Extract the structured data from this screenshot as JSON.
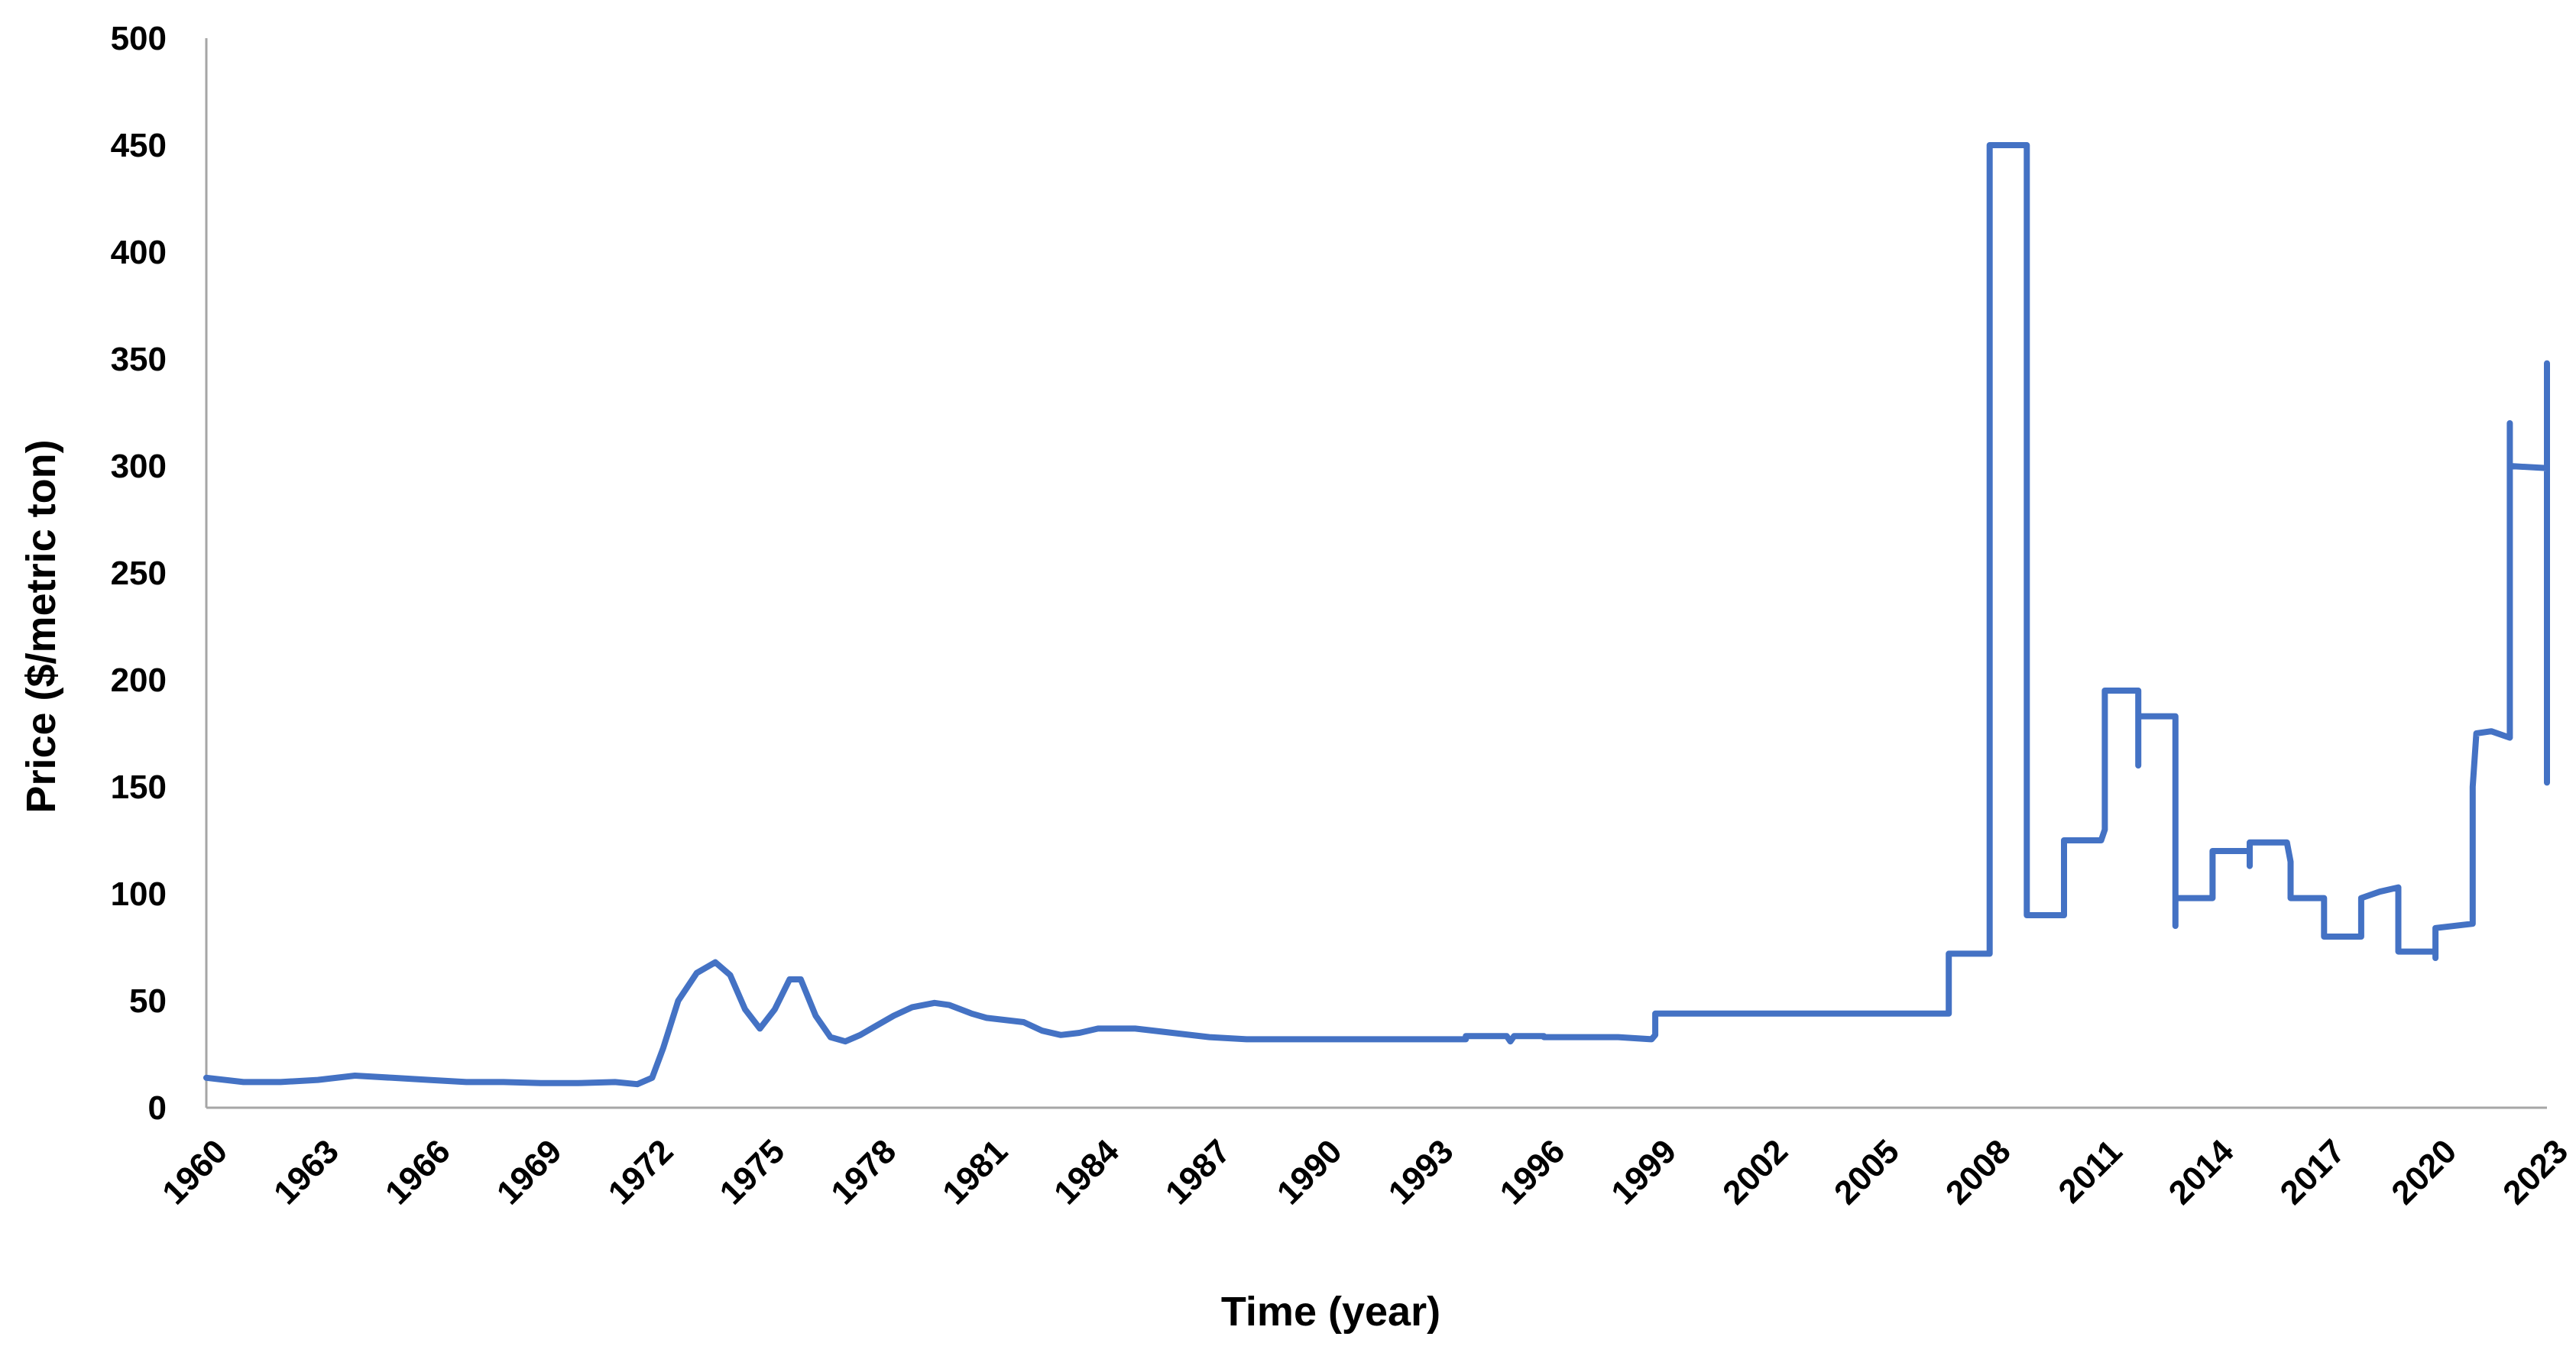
{
  "chart_data": {
    "type": "line",
    "title": "",
    "xlabel": "Time (year)",
    "ylabel": "Price ($/metric ton)",
    "xlim": [
      1960,
      2023
    ],
    "ylim": [
      0,
      500
    ],
    "y_ticks": [
      0,
      50,
      100,
      150,
      200,
      250,
      300,
      350,
      400,
      450,
      500
    ],
    "x_tick_labels": [
      "1960",
      "1963",
      "1966",
      "1969",
      "1972",
      "1975",
      "1978",
      "1981",
      "1984",
      "1987",
      "1990",
      "1993",
      "1996",
      "1999",
      "2002",
      "2005",
      "2008",
      "2011",
      "2014",
      "2017",
      "2020",
      "2023"
    ],
    "grid": false,
    "legend": "none",
    "series": [
      {
        "color": "#4472c4",
        "points": [
          [
            1960.0,
            14
          ],
          [
            1961.0,
            12
          ],
          [
            1962.0,
            12
          ],
          [
            1963.0,
            13
          ],
          [
            1964.0,
            15
          ],
          [
            1965.0,
            14
          ],
          [
            1966.0,
            13
          ],
          [
            1967.0,
            12
          ],
          [
            1968.0,
            12
          ],
          [
            1969.0,
            11.5
          ],
          [
            1970.0,
            11.5
          ],
          [
            1971.0,
            12
          ],
          [
            1971.6,
            11
          ],
          [
            1972.0,
            14
          ],
          [
            1972.3,
            28
          ],
          [
            1972.7,
            50
          ],
          [
            1973.2,
            63
          ],
          [
            1973.7,
            68
          ],
          [
            1974.1,
            62
          ],
          [
            1974.5,
            46
          ],
          [
            1974.9,
            37
          ],
          [
            1975.3,
            46
          ],
          [
            1975.7,
            60
          ],
          [
            1976.0,
            60
          ],
          [
            1976.4,
            43
          ],
          [
            1976.8,
            33
          ],
          [
            1977.2,
            31
          ],
          [
            1977.6,
            34
          ],
          [
            1978.0,
            38
          ],
          [
            1978.5,
            43
          ],
          [
            1979.0,
            47
          ],
          [
            1979.6,
            49
          ],
          [
            1980.0,
            48
          ],
          [
            1980.6,
            44
          ],
          [
            1981.0,
            42
          ],
          [
            1982.0,
            40
          ],
          [
            1982.5,
            36
          ],
          [
            1983.0,
            34
          ],
          [
            1983.5,
            35
          ],
          [
            1984.0,
            37
          ],
          [
            1985.0,
            37
          ],
          [
            1986.0,
            35
          ],
          [
            1987.0,
            33
          ],
          [
            1988.0,
            32
          ],
          [
            1990.0,
            32
          ],
          [
            1992.0,
            32
          ],
          [
            1993.9,
            32
          ],
          [
            1993.9,
            33.5
          ],
          [
            1995.0,
            33.5
          ],
          [
            1995.1,
            31
          ],
          [
            1995.2,
            33.5
          ],
          [
            1996.0,
            33.5
          ],
          [
            1996.0,
            33
          ],
          [
            1998.0,
            33
          ],
          [
            1998.9,
            32
          ],
          [
            1999.0,
            34
          ],
          [
            1999.0,
            44
          ],
          [
            2000.0,
            44
          ],
          [
            2003.0,
            44
          ],
          [
            2006.0,
            44
          ],
          [
            2006.9,
            44
          ],
          [
            2006.9,
            72
          ],
          [
            2008.0,
            72
          ],
          [
            2008.0,
            450
          ],
          [
            2009.0,
            450
          ],
          [
            2009.0,
            90
          ],
          [
            2010.0,
            90
          ],
          [
            2010.0,
            125
          ],
          [
            2011.0,
            125
          ],
          [
            2011.1,
            130
          ],
          [
            2011.1,
            145
          ],
          [
            2011.1,
            195
          ],
          [
            2012.0,
            195
          ],
          [
            2012.0,
            160
          ],
          [
            2012.0,
            183
          ],
          [
            2013.0,
            183
          ],
          [
            2013.0,
            158
          ],
          [
            2013.0,
            85
          ],
          [
            2013.0,
            98
          ],
          [
            2014.0,
            98
          ],
          [
            2014.0,
            120
          ],
          [
            2015.0,
            120
          ],
          [
            2015.0,
            113
          ],
          [
            2015.0,
            124
          ],
          [
            2016.0,
            124
          ],
          [
            2016.1,
            115
          ],
          [
            2016.1,
            98
          ],
          [
            2017.0,
            98
          ],
          [
            2017.0,
            80
          ],
          [
            2018.0,
            80
          ],
          [
            2018.0,
            98
          ],
          [
            2018.5,
            101
          ],
          [
            2019.0,
            103
          ],
          [
            2019.0,
            73
          ],
          [
            2020.0,
            73
          ],
          [
            2020.0,
            70
          ],
          [
            2020.0,
            84
          ],
          [
            2021.0,
            86
          ],
          [
            2021.0,
            150
          ],
          [
            2021.1,
            175
          ],
          [
            2021.5,
            176
          ],
          [
            2022.0,
            173
          ],
          [
            2022.0,
            320
          ],
          [
            2022.0,
            300
          ],
          [
            2023.0,
            299
          ],
          [
            2023.0,
            348
          ],
          [
            2023.0,
            152
          ]
        ]
      }
    ]
  }
}
